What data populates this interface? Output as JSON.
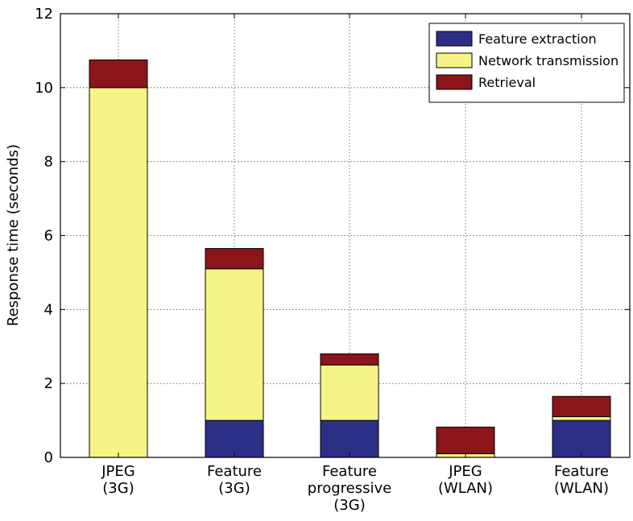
{
  "chart_data": {
    "type": "bar",
    "stacked": true,
    "title": "",
    "xlabel": "",
    "ylabel": "Response time (seconds)",
    "ylim": [
      0,
      12
    ],
    "yticks": [
      0,
      2,
      4,
      6,
      8,
      10,
      12
    ],
    "grid": true,
    "legend_position": "top-right",
    "categories": [
      [
        "JPEG",
        "(3G)"
      ],
      [
        "Feature",
        "(3G)"
      ],
      [
        "Feature",
        "progressive",
        "(3G)"
      ],
      [
        "JPEG",
        "(WLAN)"
      ],
      [
        "Feature",
        "(WLAN)"
      ]
    ],
    "series": [
      {
        "name": "Feature extraction",
        "color": "#2b2f86",
        "values": [
          0.0,
          1.0,
          1.0,
          0.0,
          1.0
        ]
      },
      {
        "name": "Network transmission",
        "color": "#f6f486",
        "values": [
          10.0,
          4.1,
          1.5,
          0.1,
          0.1
        ]
      },
      {
        "name": "Retrieval",
        "color": "#8b1518",
        "values": [
          0.75,
          0.55,
          0.3,
          0.72,
          0.55
        ]
      }
    ]
  }
}
